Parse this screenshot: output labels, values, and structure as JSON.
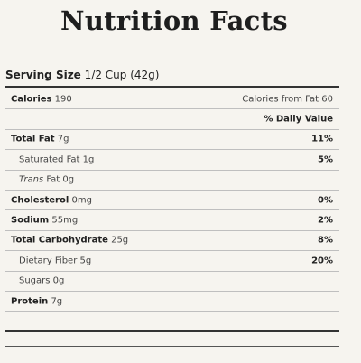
{
  "title": "Nutrition Facts",
  "serving": {
    "label": "Serving Size",
    "value": "1/2 Cup (42g)"
  },
  "calories": {
    "label": "Calories",
    "value": "190",
    "from_fat_label": "Calories from Fat",
    "from_fat_value": "60"
  },
  "daily_value_header": "% Daily Value",
  "nutrients": [
    {
      "label": "Total Fat",
      "amount": "7g",
      "dv": "11%"
    },
    {
      "label": "Saturated Fat",
      "amount": "1g",
      "dv": "5%"
    },
    {
      "label_italic": "Trans",
      "label": "Fat",
      "amount": "0g",
      "dv": ""
    },
    {
      "label": "Cholesterol",
      "amount": "0mg",
      "dv": "0%"
    },
    {
      "label": "Sodium",
      "amount": "55mg",
      "dv": "2%"
    },
    {
      "label": "Total Carbohydrate",
      "amount": "25g",
      "dv": "8%"
    },
    {
      "label": "Dietary Fiber",
      "amount": "5g",
      "dv": "20%"
    },
    {
      "label": "Sugars",
      "amount": "0g",
      "dv": ""
    },
    {
      "label": "Protein",
      "amount": "7g",
      "dv": ""
    }
  ]
}
